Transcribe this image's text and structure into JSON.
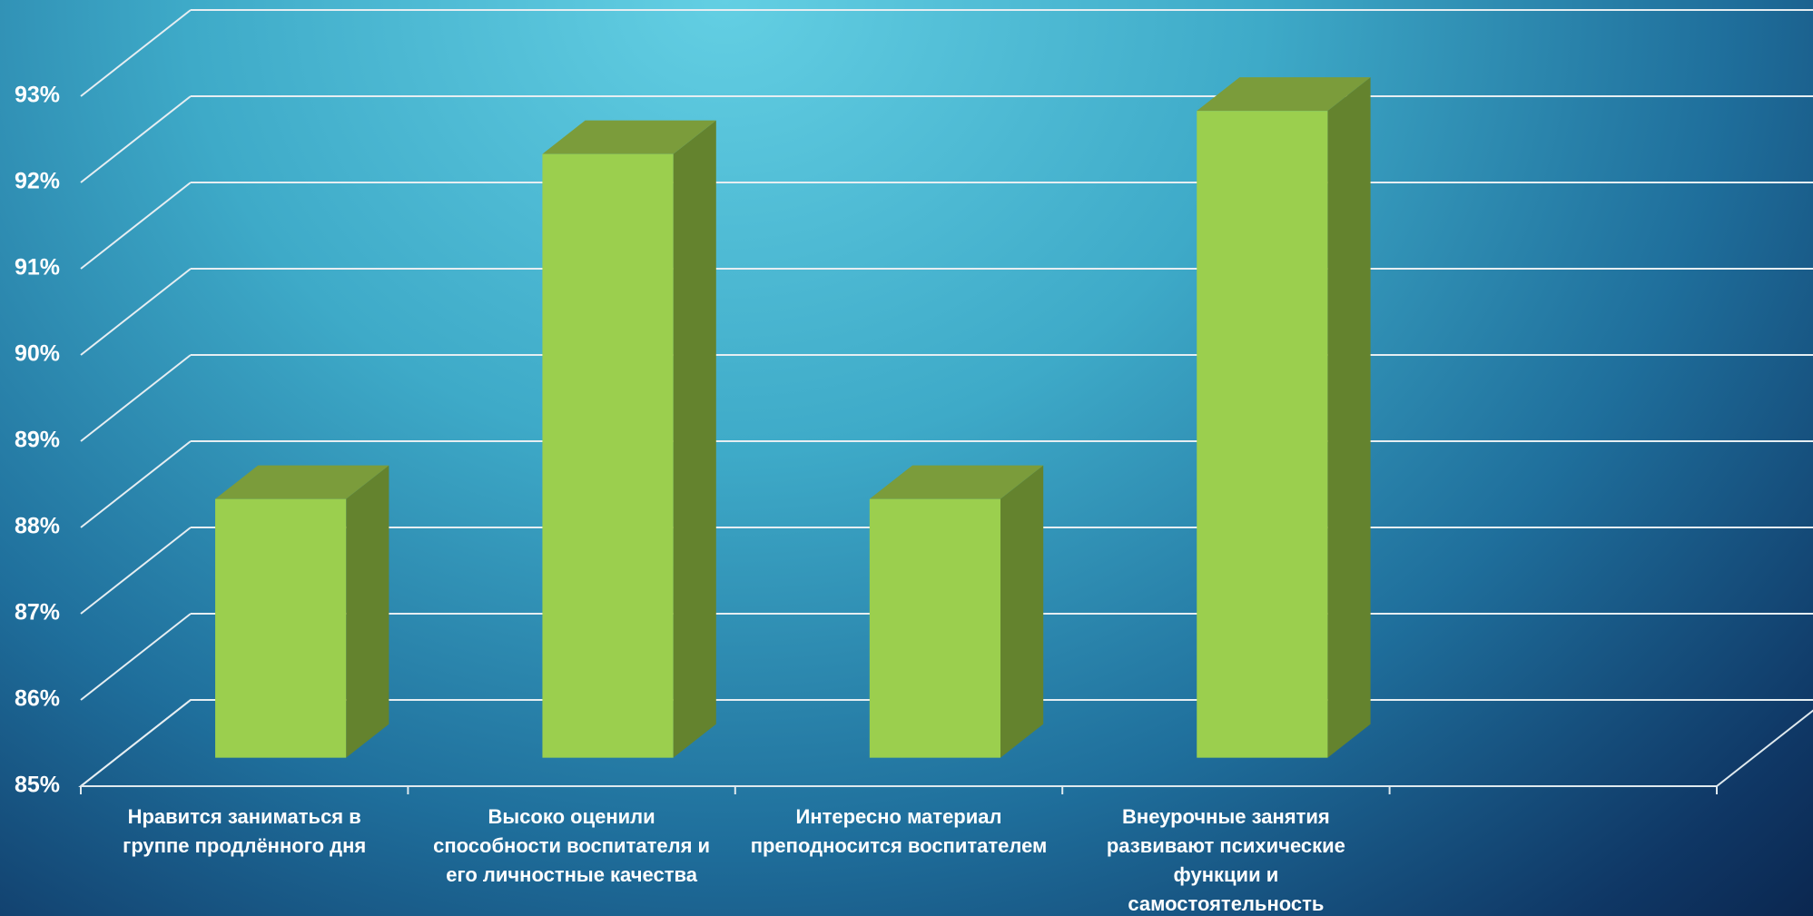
{
  "chart_data": {
    "type": "bar3d",
    "categories": [
      "Нравится заниматься в группе продлённого дня",
      "Высоко оценили способности воспитателя и его личностные качества",
      "Интересно материал преподносится воспитателем",
      "Внеурочные занятия развивают психические функции и самостоятельность",
      null
    ],
    "values": [
      88,
      92,
      88,
      92.5,
      null
    ],
    "color": "#9bcf4e",
    "side_color": "#64832e",
    "top_color": "#7b9c3b",
    "ylim": [
      85,
      93
    ],
    "yticks": [
      {
        "value": 85,
        "label": "85%"
      },
      {
        "value": 86,
        "label": "86%"
      },
      {
        "value": 87,
        "label": "87%"
      },
      {
        "value": 88,
        "label": "88%"
      },
      {
        "value": 89,
        "label": "89%"
      },
      {
        "value": 90,
        "label": "90%"
      },
      {
        "value": 91,
        "label": "91%"
      },
      {
        "value": 92,
        "label": "92%"
      },
      {
        "value": 93,
        "label": "93%"
      }
    ],
    "grid": true
  }
}
